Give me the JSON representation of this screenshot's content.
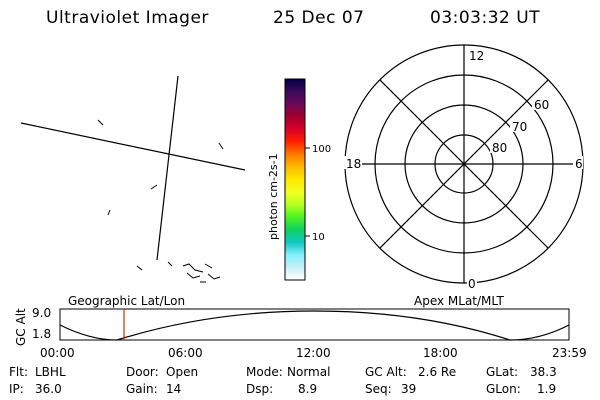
{
  "header": {
    "instrument": "Ultraviolet Imager",
    "date": "25 Dec 07",
    "time": "03:03:32 UT"
  },
  "colorbar": {
    "label": "photon cm-2s-1",
    "ticks": [
      "100",
      "10"
    ],
    "stops": [
      "#000040",
      "#3a0a5a",
      "#6a0a5a",
      "#a00030",
      "#d8002a",
      "#ff2000",
      "#ff7a00",
      "#ffb800",
      "#ffe800",
      "#f4ff20",
      "#b8ff20",
      "#50f020",
      "#10d060",
      "#10c8c0",
      "#80f0ff",
      "#c8f0f8",
      "#ffffff"
    ]
  },
  "polar": {
    "clock_labels": [
      "12",
      "6",
      "0",
      "18"
    ],
    "lat_labels": [
      "60",
      "70",
      "80"
    ]
  },
  "panels": {
    "left_label": "Geographic Lat/Lon",
    "right_label": "Apex MLat/MLT"
  },
  "orbit": {
    "ylabel": "GC Alt",
    "y_ticks": [
      "9.0",
      "1.8"
    ],
    "x_ticks": [
      "00:00",
      "06:00",
      "12:00",
      "18:00",
      "23:59"
    ],
    "marker_color": "#c83200"
  },
  "status": [
    [
      {
        "k": "Flt:",
        "v": "LBHL"
      },
      {
        "k": "Door:",
        "v": "Open"
      },
      {
        "k": "Mode:",
        "v": "Normal"
      },
      {
        "k": "GC Alt:",
        "v": "2.6 Re"
      },
      {
        "k": "GLat:",
        "v": "38.3"
      }
    ],
    [
      {
        "k": "IP:",
        "v": "36.0"
      },
      {
        "k": "Gain:",
        "v": "14"
      },
      {
        "k": "Dsp:",
        "v": "8.9"
      },
      {
        "k": "Seq:",
        "v": "39"
      },
      {
        "k": "GLon:",
        "v": "1.9"
      }
    ]
  ]
}
